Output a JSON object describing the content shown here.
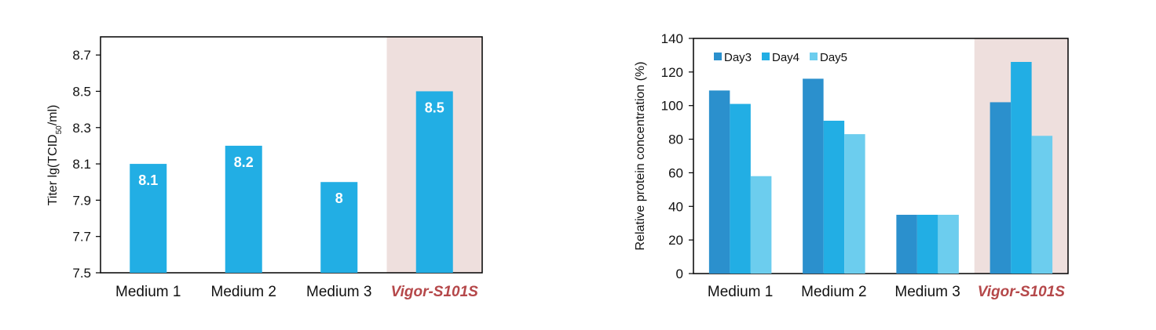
{
  "colors": {
    "bar": "#22aee4",
    "highlight_bg": "#eedfdd",
    "highlight_text": "#b5484a",
    "day3": "#2b90cd",
    "day4": "#22aee4",
    "day5": "#6ccdee"
  },
  "chart_data": [
    {
      "type": "bar",
      "categories": [
        "Medium 1",
        "Medium 2",
        "Medium 3",
        "Vigor-S101S"
      ],
      "highlight_category": "Vigor-S101S",
      "values": [
        8.1,
        8.2,
        8.0,
        8.5
      ],
      "data_labels": [
        "8.1",
        "8.2",
        "8",
        "8.5"
      ],
      "ylabel_main": "Titer  lg(TCID",
      "ylabel_sub": "50",
      "ylabel_tail": "/ml)",
      "ylim": [
        7.5,
        8.8
      ],
      "yticks": [
        7.5,
        7.7,
        7.9,
        8.1,
        8.3,
        8.5,
        8.7
      ],
      "ytick_labels": [
        "7.5",
        "7.7",
        "7.9",
        "8.1",
        "8.3",
        "8.5",
        "8.7"
      ],
      "grid": false,
      "legend": false
    },
    {
      "type": "bar",
      "categories": [
        "Medium 1",
        "Medium 2",
        "Medium 3",
        "Vigor-S101S"
      ],
      "highlight_category": "Vigor-S101S",
      "series": [
        {
          "name": "Day3",
          "values": [
            109,
            116,
            35,
            102
          ]
        },
        {
          "name": "Day4",
          "values": [
            101,
            91,
            35,
            126
          ]
        },
        {
          "name": "Day5",
          "values": [
            58,
            83,
            35,
            82
          ]
        }
      ],
      "ylabel": "Relative protein concentration (%)",
      "ylim": [
        0,
        140
      ],
      "yticks": [
        0,
        20,
        40,
        60,
        80,
        100,
        120,
        140
      ],
      "ytick_labels": [
        "0",
        "20",
        "40",
        "60",
        "80",
        "100",
        "120",
        "140"
      ],
      "grid": false,
      "legend": "top-left"
    }
  ]
}
